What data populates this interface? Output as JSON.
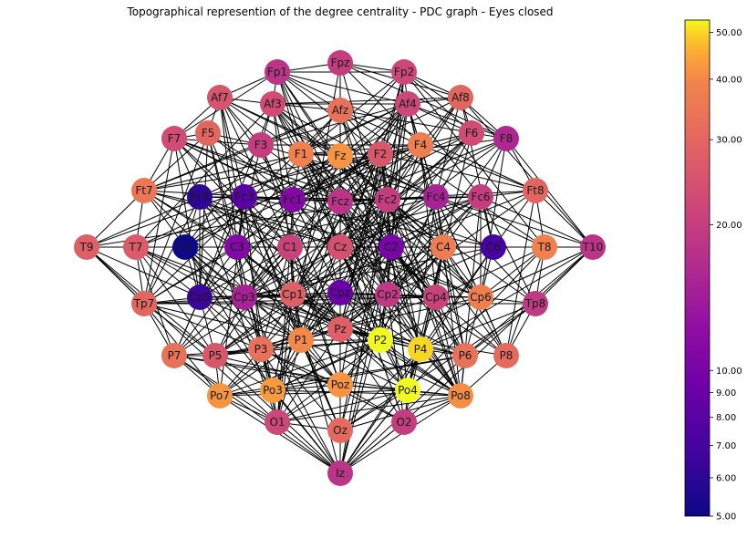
{
  "title": "Topographical represention of the degree centrality - PDC graph - Eyes closed",
  "colorbar": {
    "colormap": "plasma",
    "scale": "log",
    "min": 5.0,
    "max": 53.0,
    "ticks": [
      "5.00",
      "6.00",
      "7.00",
      "8.00",
      "9.00",
      "10.00",
      "20.00",
      "30.00",
      "40.00",
      "50.00"
    ]
  },
  "nodes": [
    {
      "label": "Fpz",
      "value": 20
    },
    {
      "label": "Fp1",
      "value": 18
    },
    {
      "label": "Fp2",
      "value": 22
    },
    {
      "label": "Af7",
      "value": 25
    },
    {
      "label": "Af3",
      "value": 23
    },
    {
      "label": "Afz",
      "value": 33
    },
    {
      "label": "Af4",
      "value": 22
    },
    {
      "label": "Af8",
      "value": 30
    },
    {
      "label": "F7",
      "value": 23
    },
    {
      "label": "F5",
      "value": 30
    },
    {
      "label": "F3",
      "value": 20
    },
    {
      "label": "F1",
      "value": 38
    },
    {
      "label": "Fz",
      "value": 42
    },
    {
      "label": "F2",
      "value": 26
    },
    {
      "label": "F4",
      "value": 37
    },
    {
      "label": "F6",
      "value": 23
    },
    {
      "label": "F8",
      "value": 16
    },
    {
      "label": "Ft7",
      "value": 35
    },
    {
      "label": "Fc5",
      "value": 6
    },
    {
      "label": "Fc3",
      "value": 8
    },
    {
      "label": "Fc1",
      "value": 11
    },
    {
      "label": "Fcz",
      "value": 18
    },
    {
      "label": "Fc2",
      "value": 20
    },
    {
      "label": "Fc4",
      "value": 15
    },
    {
      "label": "Fc6",
      "value": 20
    },
    {
      "label": "Ft8",
      "value": 30
    },
    {
      "label": "T9",
      "value": 28
    },
    {
      "label": "T7",
      "value": 27
    },
    {
      "label": "C5",
      "value": 5
    },
    {
      "label": "C3",
      "value": 11
    },
    {
      "label": "C1",
      "value": 21
    },
    {
      "label": "Cz",
      "value": 24
    },
    {
      "label": "C2",
      "value": 10
    },
    {
      "label": "C4",
      "value": 37
    },
    {
      "label": "C6",
      "value": 7
    },
    {
      "label": "T8",
      "value": 38
    },
    {
      "label": "T10",
      "value": 18
    },
    {
      "label": "Tp7",
      "value": 30
    },
    {
      "label": "Cp5",
      "value": 6.5
    },
    {
      "label": "Cp3",
      "value": 15
    },
    {
      "label": "Cp1",
      "value": 28
    },
    {
      "label": "Cpz",
      "value": 9
    },
    {
      "label": "Cp2",
      "value": 19
    },
    {
      "label": "Cp4",
      "value": 21
    },
    {
      "label": "Cp6",
      "value": 37
    },
    {
      "label": "Tp8",
      "value": 19
    },
    {
      "label": "P7",
      "value": 33
    },
    {
      "label": "P5",
      "value": 26
    },
    {
      "label": "P3",
      "value": 33
    },
    {
      "label": "P1",
      "value": 40
    },
    {
      "label": "Pz",
      "value": 28
    },
    {
      "label": "P2",
      "value": 53
    },
    {
      "label": "P4",
      "value": 50
    },
    {
      "label": "P6",
      "value": 33
    },
    {
      "label": "P8",
      "value": 31
    },
    {
      "label": "Po7",
      "value": 42
    },
    {
      "label": "Po3",
      "value": 43
    },
    {
      "label": "Poz",
      "value": 42
    },
    {
      "label": "Po4",
      "value": 53
    },
    {
      "label": "Po8",
      "value": 41
    },
    {
      "label": "O1",
      "value": 22
    },
    {
      "label": "Oz",
      "value": 31
    },
    {
      "label": "O2",
      "value": 20
    },
    {
      "label": "Iz",
      "value": 18
    }
  ]
}
